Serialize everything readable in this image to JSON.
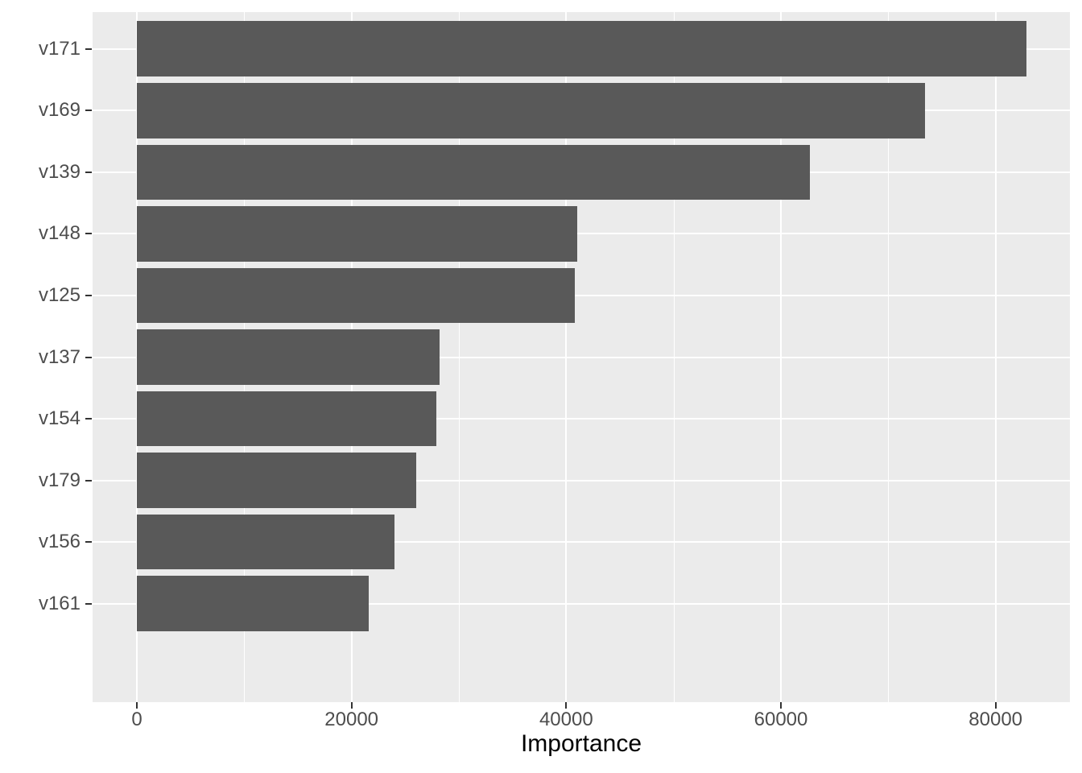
{
  "chart_data": {
    "type": "bar",
    "orientation": "horizontal",
    "title": "",
    "xlabel": "Importance",
    "ylabel": "",
    "categories": [
      "v171",
      "v169",
      "v139",
      "v148",
      "v125",
      "v137",
      "v154",
      "v179",
      "v156",
      "v161"
    ],
    "values": [
      82900,
      73400,
      62700,
      41000,
      40800,
      28200,
      27900,
      26000,
      24000,
      21600
    ],
    "series": [
      {
        "name": "Importance",
        "values": [
          82900,
          73400,
          62700,
          41000,
          40800,
          28200,
          27900,
          26000,
          24000,
          21600
        ]
      }
    ],
    "x_major_ticks": [
      0,
      20000,
      40000,
      60000,
      80000
    ],
    "x_tick_labels": [
      "0",
      "20000",
      "40000",
      "60000",
      "80000"
    ],
    "x_minor_ticks": [
      10000,
      30000,
      50000,
      70000
    ],
    "xlim": [
      -4125,
      86925
    ],
    "grid": "major-and-minor, white on grey panel",
    "legend": false,
    "colors": {
      "bar_fill": "#595959",
      "panel_background": "#EBEBEB",
      "gridline": "#FFFFFF",
      "axis_text": "#4D4D4D",
      "axis_title": "#000000",
      "tick_mark": "#333333",
      "page_background": "#FFFFFF"
    }
  }
}
